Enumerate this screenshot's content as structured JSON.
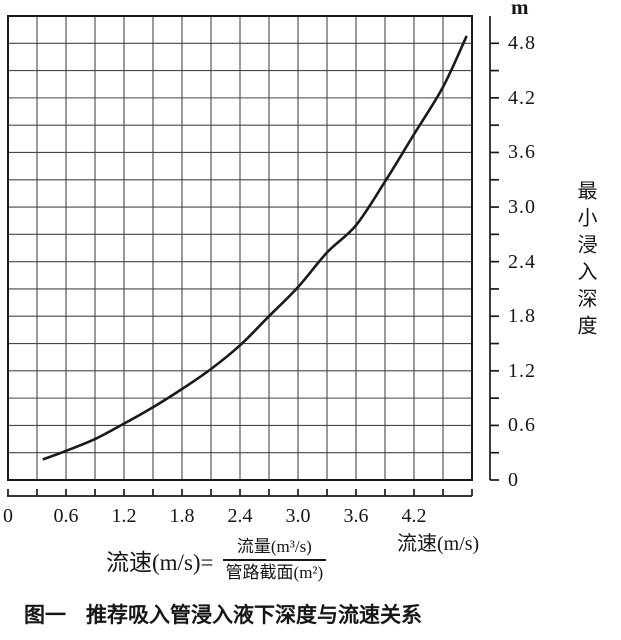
{
  "colors": {
    "ink": "#1a1a1a",
    "grid": "#474747",
    "background": "#ffffff"
  },
  "axes": {
    "x": {
      "title": "流速(m/s)",
      "tick_labels": [
        "0",
        "0.6",
        "1.2",
        "1.8",
        "2.4",
        "3.0",
        "3.6",
        "4.2"
      ]
    },
    "y": {
      "unit": "m",
      "title_vertical": "最小浸入深度",
      "tick_labels": [
        "4.8",
        "4.2",
        "3.6",
        "3.0",
        "2.4",
        "1.8",
        "1.2",
        "0.6",
        "0"
      ]
    }
  },
  "formula": {
    "lhs": "流速(m/s)=",
    "numerator": "流量(m³/s)",
    "denominator": "管路截面(m²)"
  },
  "caption": {
    "label": "图一",
    "text": "推荐吸入管浸入液下深度与流速关系"
  },
  "chart_data": {
    "type": "line",
    "title": "推荐吸入管浸入液下深度与流速关系",
    "xlabel": "流速(m/s)",
    "ylabel": "最小浸入深度 (m)",
    "xlim": [
      0,
      4.8
    ],
    "ylim": [
      0,
      5.1
    ],
    "x_minor_tick": 0.3,
    "y_minor_tick": 0.3,
    "x_label_ticks": [
      0,
      0.6,
      1.2,
      1.8,
      2.4,
      3.0,
      3.6,
      4.2
    ],
    "y_label_ticks": [
      0,
      0.6,
      1.2,
      1.8,
      2.4,
      3.0,
      3.6,
      4.2,
      4.8
    ],
    "grid": true,
    "legend": "none",
    "series": [
      {
        "name": "最小浸入深度",
        "points": [
          [
            0.37,
            0.23
          ],
          [
            0.6,
            0.32
          ],
          [
            0.9,
            0.45
          ],
          [
            1.2,
            0.62
          ],
          [
            1.5,
            0.8
          ],
          [
            1.8,
            1.0
          ],
          [
            2.1,
            1.22
          ],
          [
            2.4,
            1.48
          ],
          [
            2.7,
            1.8
          ],
          [
            3.0,
            2.12
          ],
          [
            3.3,
            2.5
          ],
          [
            3.6,
            2.8
          ],
          [
            3.9,
            3.28
          ],
          [
            4.2,
            3.8
          ],
          [
            4.5,
            4.32
          ],
          [
            4.74,
            4.87
          ]
        ]
      }
    ]
  }
}
